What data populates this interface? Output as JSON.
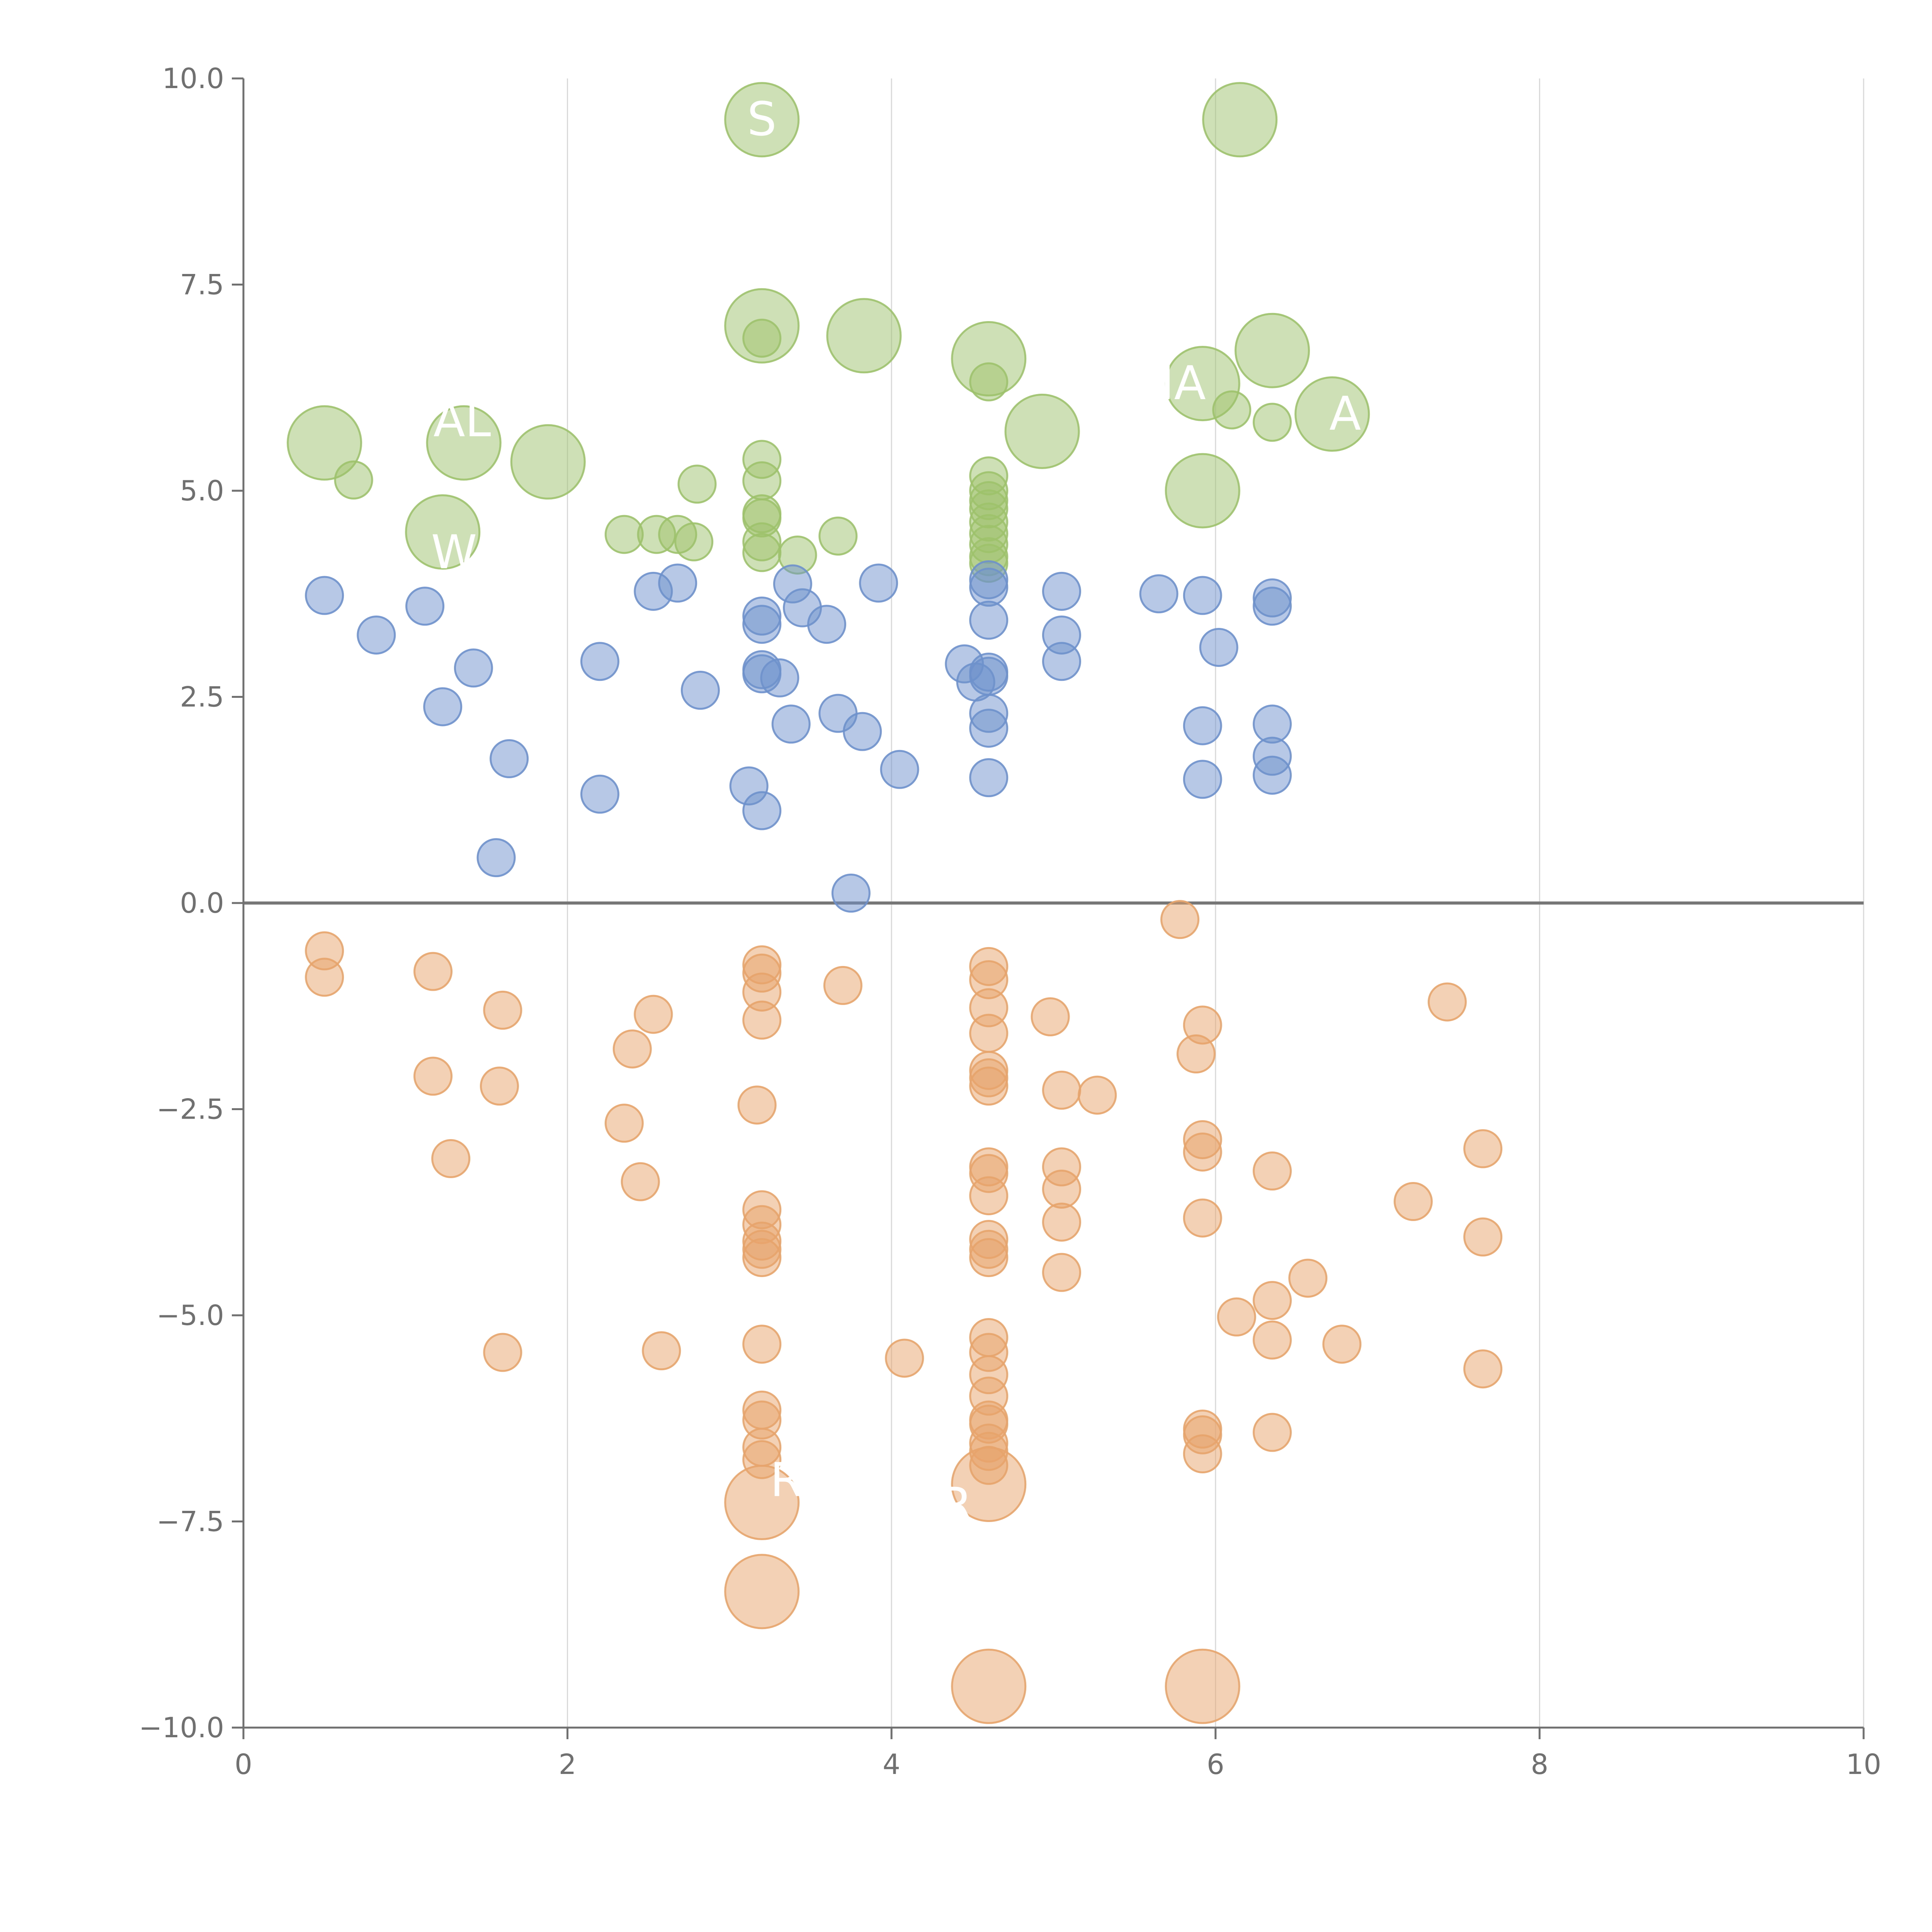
{
  "chart_data": {
    "type": "scatter",
    "title": "",
    "xlabel": "",
    "ylabel": "",
    "xlim": [
      0,
      10
    ],
    "ylim": [
      -10,
      10
    ],
    "x_ticks": [
      0,
      2,
      4,
      6,
      8,
      10
    ],
    "x_tick_labels": [
      "0",
      "2",
      "4",
      "6",
      "8",
      "10"
    ],
    "y_ticks": [
      -10,
      -7.5,
      -5,
      -2.5,
      0,
      2.5,
      5,
      7.5,
      10
    ],
    "y_tick_labels": [
      "−10.0",
      "−7.5",
      "−5.0",
      "−2.5",
      "0.0",
      "2.5",
      "5.0",
      "7.5",
      "10.0"
    ],
    "grid": "vertical",
    "zero_line": true,
    "colors": {
      "green": "#9dc26b",
      "blue": "#6e91cc",
      "orange": "#e7a46b",
      "axis": "#707070",
      "grid": "#d9d9d9",
      "zero": "#777777"
    },
    "series": [
      {
        "name": "green",
        "color": "#9dc26b",
        "points": [
          [
            3.2,
            9.5,
            1
          ],
          [
            6.15,
            9.5,
            1
          ],
          [
            3.2,
            7.0,
            1
          ],
          [
            3.83,
            6.88,
            1
          ],
          [
            4.6,
            6.6,
            1
          ],
          [
            6.35,
            6.7,
            1
          ],
          [
            5.92,
            6.3,
            1
          ],
          [
            6.72,
            5.93,
            1
          ],
          [
            4.93,
            5.72,
            1
          ],
          [
            0.5,
            5.58,
            1
          ],
          [
            1.36,
            5.58,
            1
          ],
          [
            1.88,
            5.35,
            1
          ],
          [
            1.23,
            4.5,
            1
          ],
          [
            5.92,
            5.0,
            1
          ],
          [
            3.2,
            6.85,
            0
          ],
          [
            4.6,
            6.32,
            0
          ],
          [
            6.1,
            5.98,
            0
          ],
          [
            6.35,
            5.83,
            0
          ],
          [
            0.68,
            5.13,
            0
          ],
          [
            3.2,
            5.38,
            0
          ],
          [
            3.2,
            5.12,
            0
          ],
          [
            2.8,
            5.08,
            0
          ],
          [
            3.2,
            4.72,
            0
          ],
          [
            3.2,
            4.67,
            0
          ],
          [
            2.35,
            4.47,
            0
          ],
          [
            2.55,
            4.47,
            0
          ],
          [
            2.68,
            4.47,
            0
          ],
          [
            2.78,
            4.38,
            0
          ],
          [
            3.2,
            4.38,
            0
          ],
          [
            3.2,
            4.25,
            0
          ],
          [
            3.42,
            4.22,
            0
          ],
          [
            3.67,
            4.45,
            0
          ],
          [
            4.6,
            5.18,
            0
          ],
          [
            4.6,
            5.0,
            0
          ],
          [
            4.6,
            4.88,
            0
          ],
          [
            4.6,
            4.78,
            0
          ],
          [
            4.6,
            4.62,
            0
          ],
          [
            4.6,
            4.48,
            0
          ],
          [
            4.6,
            4.35,
            0
          ],
          [
            4.6,
            4.2,
            0
          ],
          [
            4.6,
            4.12,
            0
          ]
        ]
      },
      {
        "name": "blue",
        "color": "#6e91cc",
        "points": [
          [
            0.5,
            3.73,
            0
          ],
          [
            0.82,
            3.25,
            0
          ],
          [
            1.12,
            3.6,
            0
          ],
          [
            1.23,
            2.38,
            0
          ],
          [
            1.42,
            2.85,
            0
          ],
          [
            1.64,
            1.75,
            0
          ],
          [
            1.56,
            0.55,
            0
          ],
          [
            2.2,
            2.93,
            0
          ],
          [
            2.2,
            1.32,
            0
          ],
          [
            2.53,
            3.78,
            0
          ],
          [
            2.68,
            3.88,
            0
          ],
          [
            2.82,
            2.58,
            0
          ],
          [
            3.12,
            1.42,
            0
          ],
          [
            3.2,
            3.48,
            0
          ],
          [
            3.2,
            3.38,
            0
          ],
          [
            3.2,
            2.83,
            0
          ],
          [
            3.2,
            2.78,
            0
          ],
          [
            3.31,
            2.73,
            0
          ],
          [
            3.2,
            1.12,
            0
          ],
          [
            3.39,
            3.87,
            0
          ],
          [
            3.45,
            3.58,
            0
          ],
          [
            3.6,
            3.38,
            0
          ],
          [
            3.38,
            2.17,
            0
          ],
          [
            3.67,
            2.3,
            0
          ],
          [
            3.82,
            2.08,
            0
          ],
          [
            3.92,
            3.88,
            0
          ],
          [
            4.05,
            1.62,
            0
          ],
          [
            3.75,
            0.12,
            0
          ],
          [
            4.45,
            2.9,
            0
          ],
          [
            4.52,
            2.68,
            0
          ],
          [
            4.6,
            3.92,
            0
          ],
          [
            4.6,
            3.83,
            0
          ],
          [
            4.6,
            3.43,
            0
          ],
          [
            4.6,
            2.8,
            0
          ],
          [
            4.6,
            2.75,
            0
          ],
          [
            4.6,
            2.3,
            0
          ],
          [
            4.6,
            2.12,
            0
          ],
          [
            4.6,
            1.52,
            0
          ],
          [
            5.05,
            3.78,
            0
          ],
          [
            5.05,
            3.25,
            0
          ],
          [
            5.05,
            2.93,
            0
          ],
          [
            5.65,
            3.75,
            0
          ],
          [
            5.92,
            3.73,
            0
          ],
          [
            5.92,
            2.15,
            0
          ],
          [
            5.92,
            1.5,
            0
          ],
          [
            6.02,
            3.1,
            0
          ],
          [
            6.35,
            3.7,
            0
          ],
          [
            6.35,
            3.6,
            0
          ],
          [
            6.35,
            2.17,
            0
          ],
          [
            6.35,
            1.78,
            0
          ],
          [
            6.35,
            1.55,
            0
          ]
        ]
      },
      {
        "name": "orange",
        "color": "#e7a46b",
        "points": [
          [
            3.2,
            -7.27,
            1
          ],
          [
            4.6,
            -7.05,
            1
          ],
          [
            3.2,
            -8.35,
            1
          ],
          [
            4.6,
            -9.5,
            1
          ],
          [
            5.92,
            -9.5,
            1
          ],
          [
            0.5,
            -0.58,
            0
          ],
          [
            0.5,
            -0.9,
            0
          ],
          [
            1.17,
            -0.83,
            0
          ],
          [
            1.17,
            -2.1,
            0
          ],
          [
            1.28,
            -3.1,
            0
          ],
          [
            1.6,
            -1.3,
            0
          ],
          [
            1.58,
            -2.22,
            0
          ],
          [
            1.6,
            -5.45,
            0
          ],
          [
            2.4,
            -1.77,
            0
          ],
          [
            2.53,
            -1.35,
            0
          ],
          [
            2.35,
            -2.67,
            0
          ],
          [
            2.45,
            -3.38,
            0
          ],
          [
            2.58,
            -5.43,
            0
          ],
          [
            3.2,
            -0.75,
            0
          ],
          [
            3.2,
            -0.85,
            0
          ],
          [
            3.2,
            -1.08,
            0
          ],
          [
            3.2,
            -1.42,
            0
          ],
          [
            3.17,
            -2.45,
            0
          ],
          [
            3.2,
            -3.72,
            0
          ],
          [
            3.2,
            -3.9,
            0
          ],
          [
            3.2,
            -4.1,
            0
          ],
          [
            3.2,
            -4.2,
            0
          ],
          [
            3.2,
            -4.3,
            0
          ],
          [
            3.2,
            -5.35,
            0
          ],
          [
            3.2,
            -6.15,
            0
          ],
          [
            3.2,
            -6.27,
            0
          ],
          [
            3.2,
            -6.6,
            0
          ],
          [
            3.2,
            -6.75,
            0
          ],
          [
            3.7,
            -1.0,
            0
          ],
          [
            4.08,
            -5.52,
            0
          ],
          [
            4.6,
            -0.77,
            0
          ],
          [
            4.6,
            -0.93,
            0
          ],
          [
            4.6,
            -1.27,
            0
          ],
          [
            4.6,
            -1.58,
            0
          ],
          [
            4.6,
            -2.03,
            0
          ],
          [
            4.6,
            -2.12,
            0
          ],
          [
            4.6,
            -2.22,
            0
          ],
          [
            4.6,
            -3.2,
            0
          ],
          [
            4.6,
            -3.28,
            0
          ],
          [
            4.6,
            -3.55,
            0
          ],
          [
            4.6,
            -4.08,
            0
          ],
          [
            4.6,
            -4.2,
            0
          ],
          [
            4.6,
            -4.3,
            0
          ],
          [
            4.6,
            -5.27,
            0
          ],
          [
            4.6,
            -5.45,
            0
          ],
          [
            4.6,
            -5.72,
            0
          ],
          [
            4.6,
            -5.98,
            0
          ],
          [
            4.6,
            -6.27,
            0
          ],
          [
            4.6,
            -6.32,
            0
          ],
          [
            4.6,
            -6.55,
            0
          ],
          [
            4.6,
            -6.65,
            0
          ],
          [
            4.6,
            -6.82,
            0
          ],
          [
            4.98,
            -1.38,
            0
          ],
          [
            5.05,
            -2.27,
            0
          ],
          [
            5.05,
            -3.2,
            0
          ],
          [
            5.05,
            -3.47,
            0
          ],
          [
            5.05,
            -3.87,
            0
          ],
          [
            5.05,
            -4.48,
            0
          ],
          [
            5.27,
            -2.33,
            0
          ],
          [
            5.78,
            -0.2,
            0
          ],
          [
            5.92,
            -1.48,
            0
          ],
          [
            5.88,
            -1.83,
            0
          ],
          [
            5.92,
            -2.87,
            0
          ],
          [
            5.92,
            -3.02,
            0
          ],
          [
            5.92,
            -3.82,
            0
          ],
          [
            5.92,
            -6.38,
            0
          ],
          [
            5.92,
            -6.45,
            0
          ],
          [
            5.92,
            -6.68,
            0
          ],
          [
            6.13,
            -5.02,
            0
          ],
          [
            6.35,
            -3.25,
            0
          ],
          [
            6.35,
            -4.82,
            0
          ],
          [
            6.35,
            -5.3,
            0
          ],
          [
            6.35,
            -6.42,
            0
          ],
          [
            6.57,
            -4.55,
            0
          ],
          [
            6.78,
            -5.35,
            0
          ],
          [
            7.22,
            -3.62,
            0
          ],
          [
            7.43,
            -1.2,
            0
          ],
          [
            7.65,
            -2.98,
            0
          ],
          [
            7.65,
            -4.05,
            0
          ],
          [
            7.65,
            -5.65,
            0
          ]
        ]
      }
    ],
    "annotations": [
      {
        "text": "S",
        "x": 3.2,
        "y": 9.5
      },
      {
        "text": "IA",
        "x": 5.8,
        "y": 6.3
      },
      {
        "text": "A",
        "x": 6.8,
        "y": 5.93
      },
      {
        "text": "AL",
        "x": 1.35,
        "y": 5.85
      },
      {
        "text": "W",
        "x": 1.3,
        "y": 4.25
      },
      {
        "text": "R",
        "x": 3.35,
        "y": -7.0
      },
      {
        "text": "R",
        "x": 4.4,
        "y": -7.3
      }
    ]
  }
}
